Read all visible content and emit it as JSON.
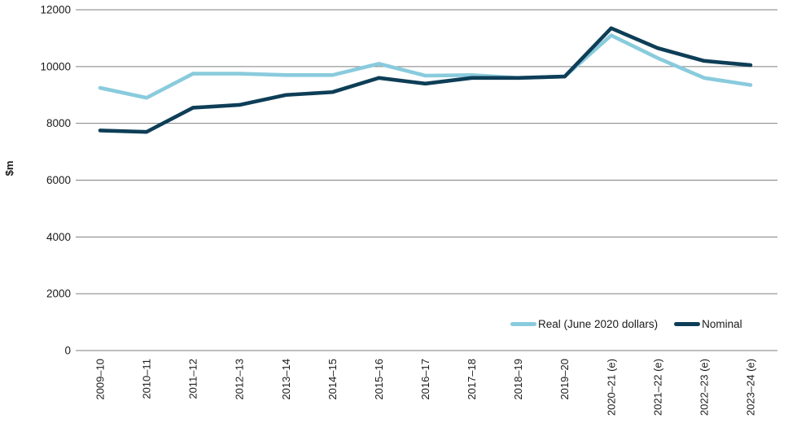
{
  "chart_data": {
    "type": "line",
    "title": "",
    "xlabel": "",
    "ylabel": "$m",
    "ylim": [
      0,
      12000
    ],
    "yticks": [
      0,
      2000,
      4000,
      6000,
      8000,
      10000,
      12000
    ],
    "grid": true,
    "legend_position": "bottom-right",
    "categories": [
      "2009–10",
      "2010–11",
      "2011–12",
      "2012–13",
      "2013–14",
      "2014–15",
      "2015–16",
      "2016–17",
      "2017–18",
      "2018–19",
      "2019–20",
      "2020–21 (e)",
      "2021–22 (e)",
      "2022–23 (e)",
      "2023–24 (e)"
    ],
    "series": [
      {
        "name": "Real (June 2020 dollars)",
        "color": "#89cbdd",
        "values": [
          9250,
          8900,
          9750,
          9750,
          9700,
          9700,
          10100,
          9680,
          9700,
          9600,
          9650,
          11100,
          10300,
          9600,
          9350
        ]
      },
      {
        "name": "Nominal",
        "color": "#0e3e57",
        "values": [
          7750,
          7700,
          8550,
          8650,
          9000,
          9100,
          9600,
          9400,
          9600,
          9600,
          9650,
          11350,
          10650,
          10200,
          10050
        ]
      }
    ],
    "colors": {
      "grid": "#7f7f7f",
      "text": "#1a1a1a"
    }
  }
}
